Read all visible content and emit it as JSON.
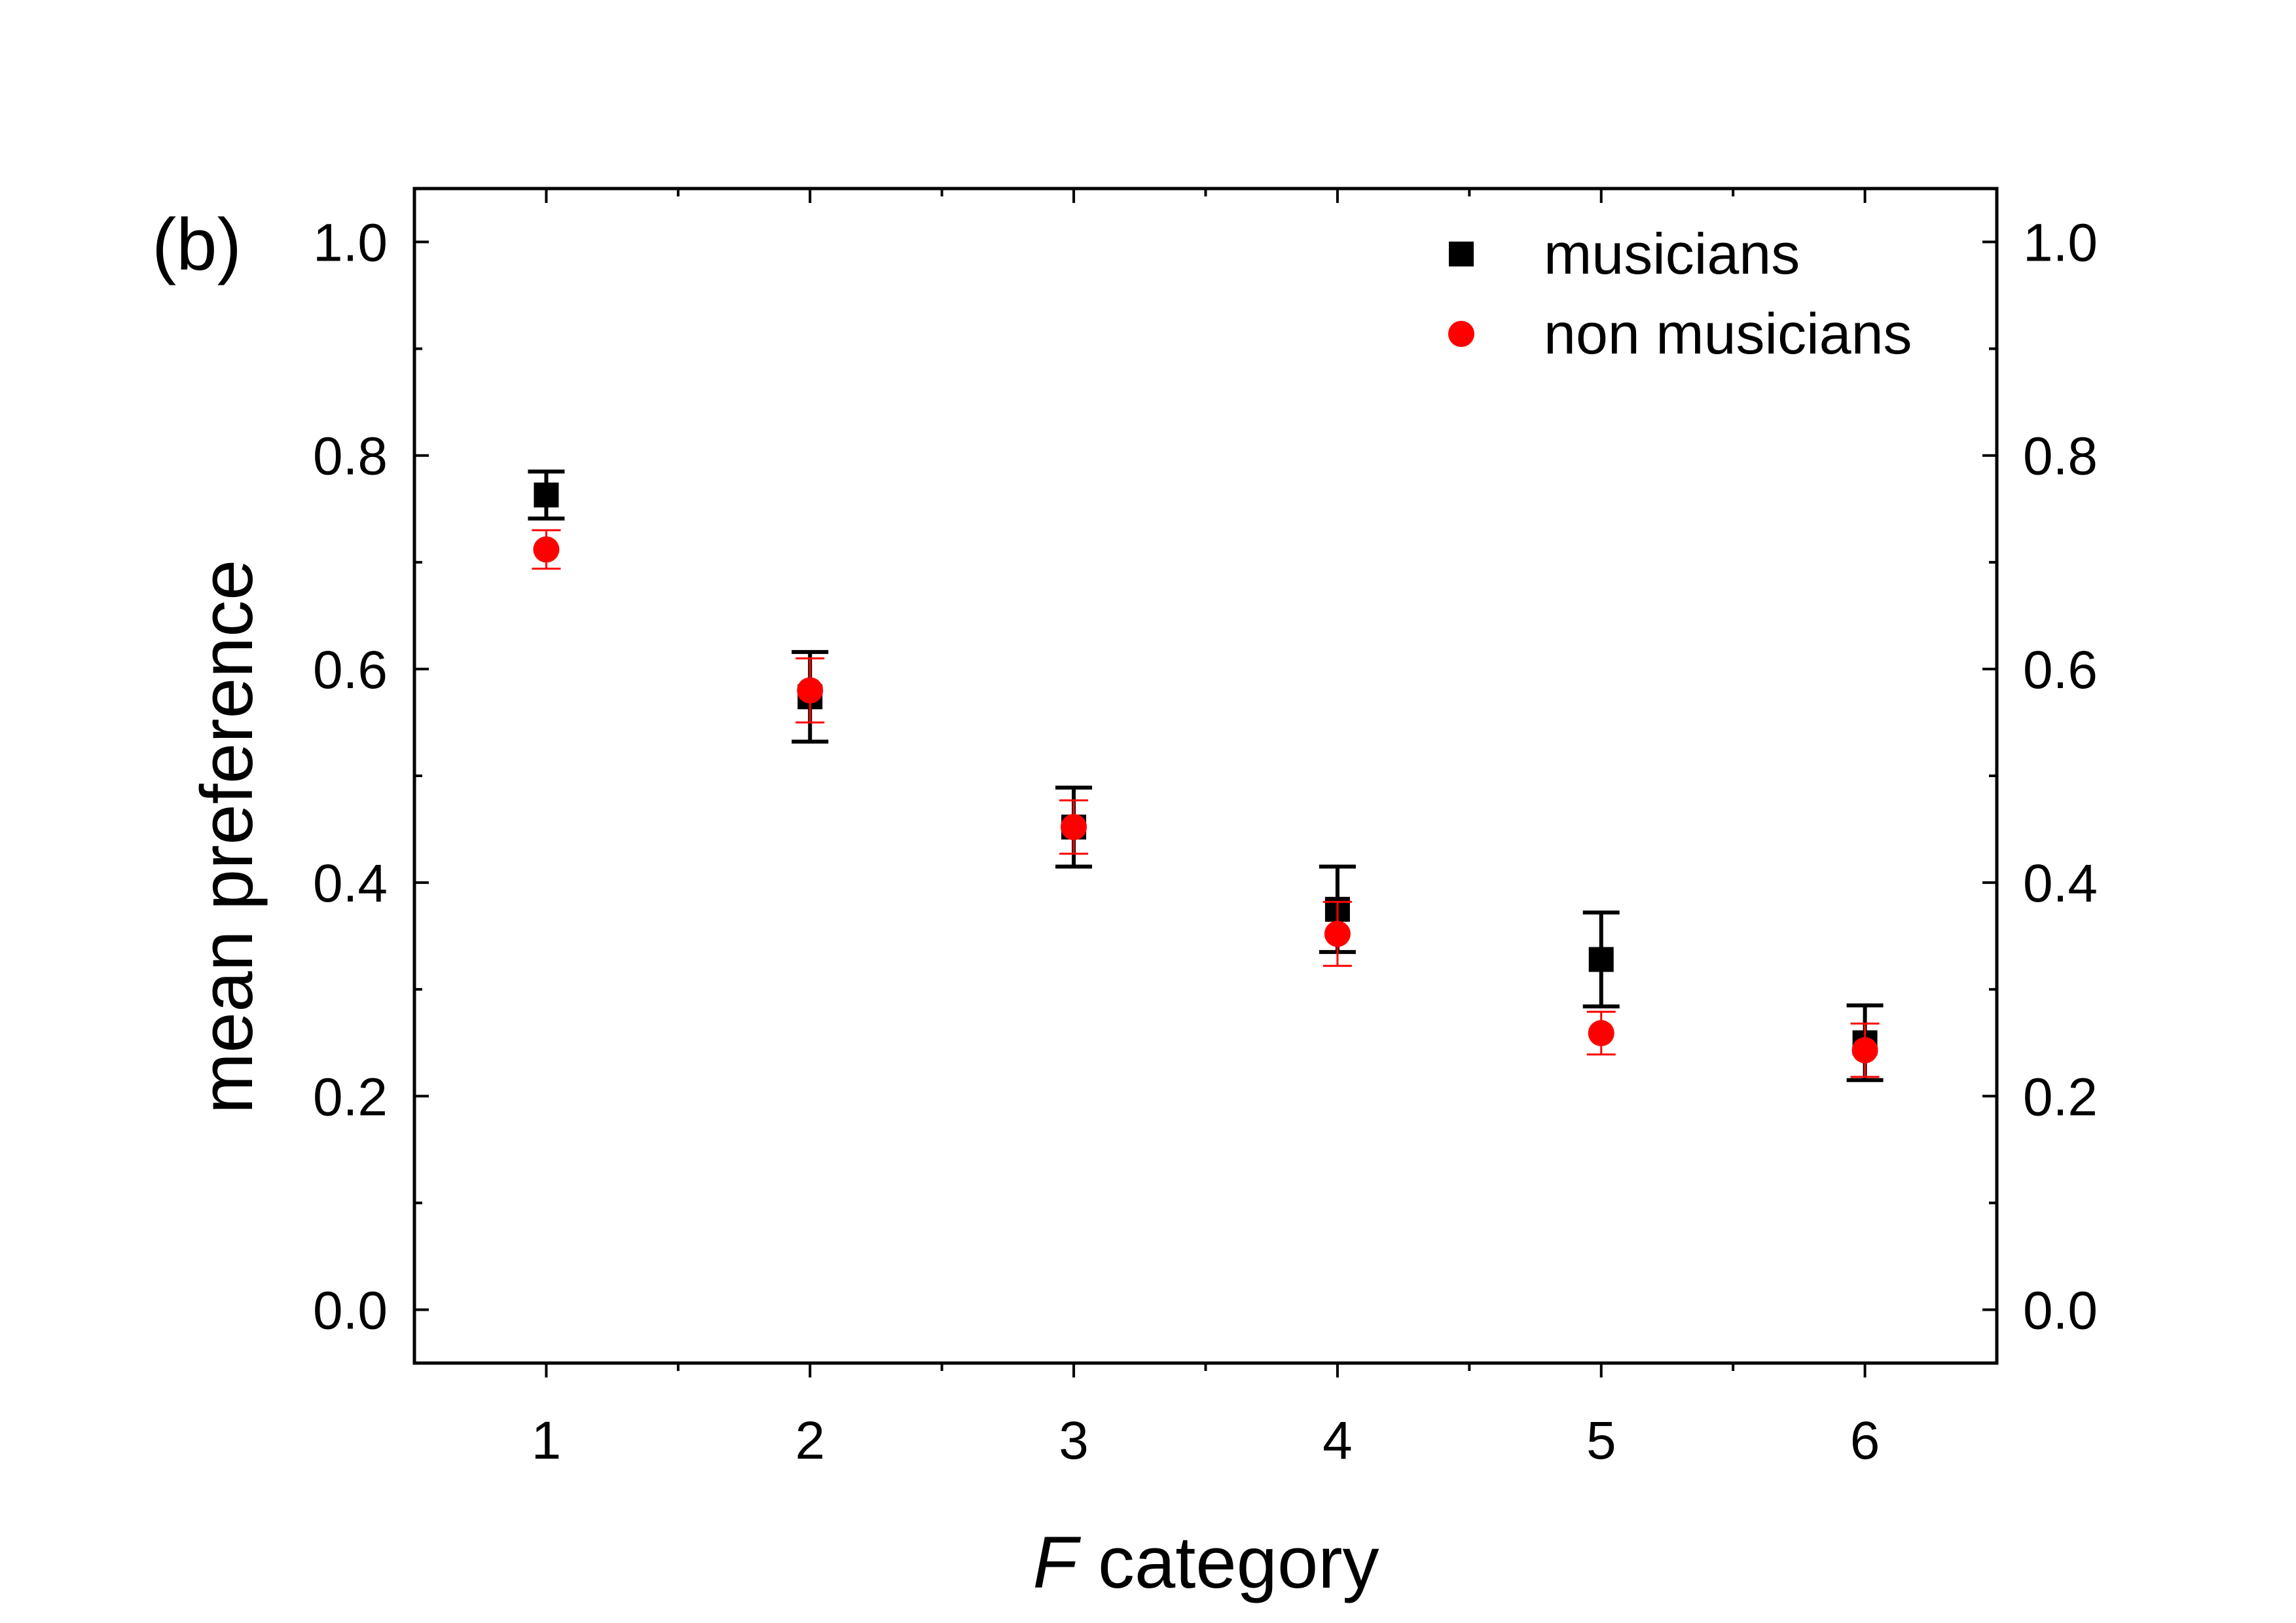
{
  "chart_data": {
    "type": "scatter",
    "panel_label": "(b)",
    "title": "",
    "xlabel_italic": "F",
    "xlabel_rest": " category",
    "ylabel": "mean preference",
    "x_ticks": [
      "1",
      "2",
      "3",
      "4",
      "5",
      "6"
    ],
    "y_ticks": [
      "0.0",
      "0.2",
      "0.4",
      "0.6",
      "0.8",
      "1.0"
    ],
    "xlim": [
      0.5,
      6.5
    ],
    "ylim": [
      -0.05,
      1.05
    ],
    "grid": false,
    "legend_position": "top-right",
    "series": [
      {
        "name": "musicians",
        "marker": "square",
        "color": "#000000",
        "x": [
          1,
          2,
          3,
          4,
          5,
          6
        ],
        "y": [
          0.763,
          0.574,
          0.452,
          0.375,
          0.328,
          0.25
        ],
        "error": [
          0.022,
          0.042,
          0.037,
          0.04,
          0.044,
          0.035
        ]
      },
      {
        "name": "non musicians",
        "marker": "circle",
        "color": "#ff0000",
        "x": [
          1,
          2,
          3,
          4,
          5,
          6
        ],
        "y": [
          0.712,
          0.58,
          0.452,
          0.352,
          0.259,
          0.243
        ],
        "error": [
          0.018,
          0.03,
          0.025,
          0.03,
          0.02,
          0.025
        ]
      }
    ]
  }
}
